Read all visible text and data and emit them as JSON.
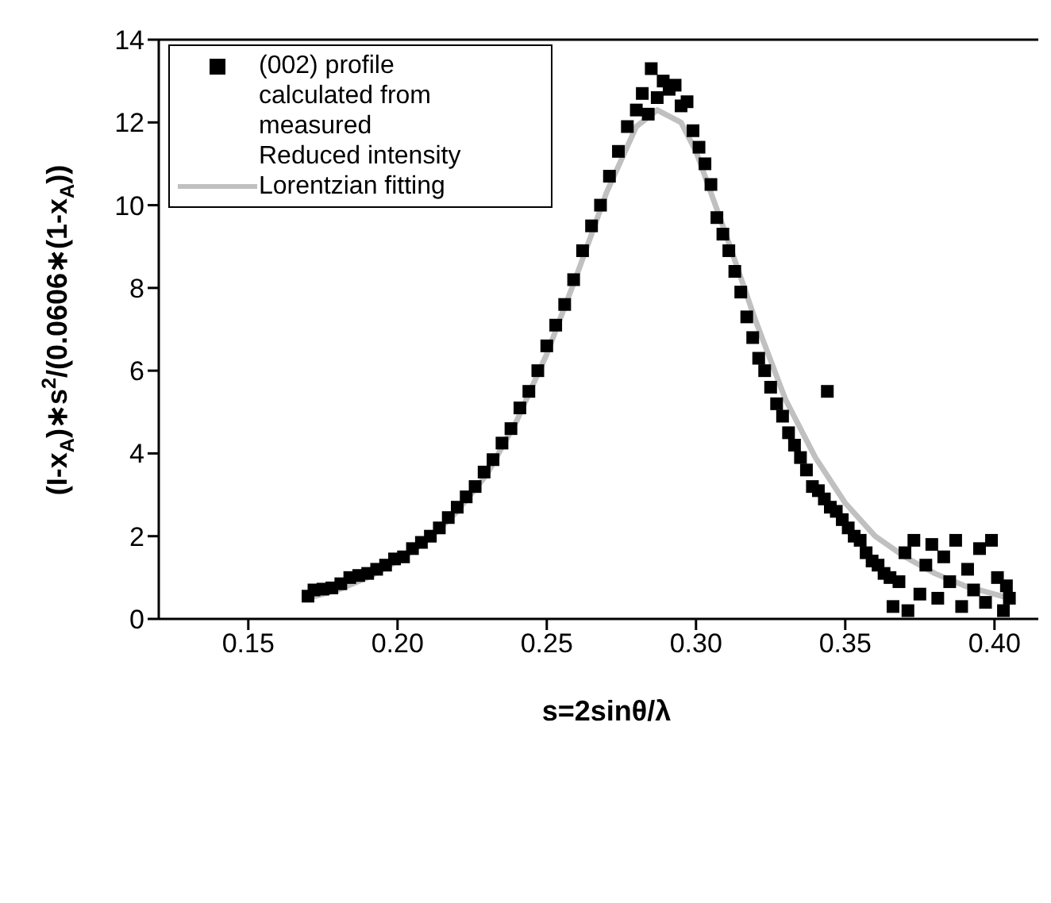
{
  "chart_data": {
    "type": "scatter",
    "xlabel": "s=2sinθ/λ",
    "ylabel": "(I-x$_{A}$)∗s$^{2}$/(0.0606∗(1-x$_{A}$))",
    "xlim": [
      0.12,
      0.42
    ],
    "ylim": [
      0,
      14
    ],
    "xticks": [
      0.15,
      {
        "value": 0.2,
        "label": "0.20"
      },
      0.25,
      {
        "value": 0.3,
        "label": "0.30"
      },
      0.35,
      {
        "value": 0.4,
        "label": "0.40"
      }
    ],
    "yticks": [
      0,
      2,
      4,
      6,
      8,
      10,
      12,
      14
    ],
    "legend": "top left",
    "grid": false,
    "series": [
      {
        "name": "(002) profile calculated from measured Reduced intensity",
        "color": "#000000",
        "marker": "square",
        "x": [
          0.17,
          0.172,
          0.175,
          0.178,
          0.181,
          0.184,
          0.187,
          0.19,
          0.193,
          0.196,
          0.199,
          0.202,
          0.205,
          0.208,
          0.211,
          0.214,
          0.217,
          0.22,
          0.223,
          0.226,
          0.229,
          0.232,
          0.235,
          0.238,
          0.241,
          0.244,
          0.247,
          0.25,
          0.253,
          0.256,
          0.259,
          0.262,
          0.265,
          0.268,
          0.271,
          0.274,
          0.277,
          0.28,
          0.282,
          0.284,
          0.285,
          0.287,
          0.289,
          0.291,
          0.293,
          0.295,
          0.297,
          0.299,
          0.301,
          0.303,
          0.305,
          0.307,
          0.309,
          0.311,
          0.313,
          0.315,
          0.317,
          0.319,
          0.321,
          0.323,
          0.325,
          0.327,
          0.329,
          0.331,
          0.333,
          0.335,
          0.337,
          0.339,
          0.341,
          0.343,
          0.344,
          0.345,
          0.347,
          0.349,
          0.351,
          0.353,
          0.355,
          0.357,
          0.359,
          0.361,
          0.363,
          0.365,
          0.366,
          0.368,
          0.37,
          0.371,
          0.373,
          0.375,
          0.377,
          0.379,
          0.381,
          0.383,
          0.385,
          0.387,
          0.389,
          0.391,
          0.393,
          0.395,
          0.397,
          0.399,
          0.401,
          0.403,
          0.404,
          0.405
        ],
        "values": [
          0.55,
          0.7,
          0.72,
          0.75,
          0.85,
          1.0,
          1.05,
          1.1,
          1.2,
          1.3,
          1.45,
          1.5,
          1.7,
          1.85,
          2.0,
          2.2,
          2.45,
          2.7,
          2.95,
          3.2,
          3.55,
          3.85,
          4.25,
          4.6,
          5.1,
          5.5,
          6.0,
          6.6,
          7.1,
          7.6,
          8.2,
          8.9,
          9.5,
          10.0,
          10.7,
          11.3,
          11.9,
          12.3,
          12.7,
          12.2,
          13.3,
          12.6,
          13.0,
          12.8,
          12.9,
          12.4,
          12.5,
          11.8,
          11.4,
          11.0,
          10.5,
          9.7,
          9.3,
          8.9,
          8.4,
          7.9,
          7.3,
          6.8,
          6.3,
          6.0,
          5.6,
          5.2,
          4.9,
          4.5,
          4.2,
          3.9,
          3.6,
          3.2,
          3.1,
          2.9,
          5.5,
          2.7,
          2.6,
          2.4,
          2.2,
          2.0,
          1.9,
          1.6,
          1.4,
          1.3,
          1.1,
          1.0,
          0.3,
          0.9,
          1.6,
          0.2,
          1.9,
          0.6,
          1.3,
          1.8,
          0.5,
          1.5,
          0.9,
          1.9,
          0.3,
          1.2,
          0.7,
          1.7,
          0.4,
          1.9,
          1.0,
          0.2,
          0.8,
          0.5
        ]
      },
      {
        "name": "Lorentzian fitting",
        "type": "line",
        "color": "#c0c0c0",
        "marker": "none",
        "x": [
          0.17,
          0.18,
          0.19,
          0.2,
          0.21,
          0.22,
          0.23,
          0.24,
          0.25,
          0.26,
          0.27,
          0.28,
          0.287,
          0.295,
          0.3,
          0.31,
          0.32,
          0.33,
          0.34,
          0.35,
          0.36,
          0.37,
          0.38,
          0.39,
          0.405
        ],
        "values": [
          0.5,
          0.7,
          1.0,
          1.4,
          1.9,
          2.6,
          3.5,
          4.8,
          6.4,
          8.3,
          10.3,
          11.9,
          12.3,
          12.0,
          11.3,
          9.3,
          7.2,
          5.3,
          3.9,
          2.8,
          2.0,
          1.5,
          1.1,
          0.8,
          0.5
        ]
      }
    ]
  }
}
